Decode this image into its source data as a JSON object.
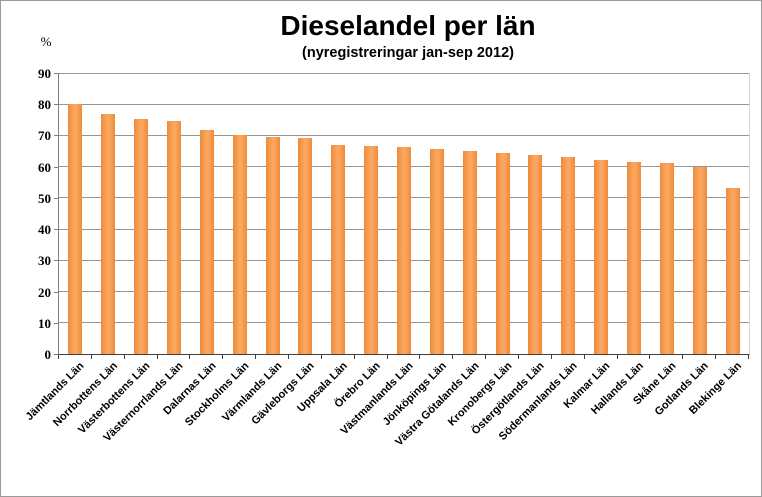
{
  "chart_data": {
    "type": "bar",
    "title": "Dieselandel per län",
    "subtitle": "(nyregistreringar jan-sep 2012)",
    "ylabel": "%",
    "xlabel": "",
    "ylim": [
      0,
      90
    ],
    "yticks": [
      0,
      10,
      20,
      30,
      40,
      50,
      60,
      70,
      80,
      90
    ],
    "grid": true,
    "legend": false,
    "bar_color": "#F79646",
    "gridline_color": "#969696",
    "categories": [
      "Jämtlands Län",
      "Norrbottens Län",
      "Västerbottens Län",
      "Västernorrlands Län",
      "Dalarnas Län",
      "Stockholms Län",
      "Värmlands Län",
      "Gävleborgs Län",
      "Uppsala Län",
      "Örebro Län",
      "Västmanlands Län",
      "Jönköpings Län",
      "Västra Götalands Län",
      "Kronobergs Län",
      "Östergötlands Län",
      "Södermanlands Län",
      "Kalmar Län",
      "Hallands Län",
      "Skåne Län",
      "Gotlands Län",
      "Blekinge Län"
    ],
    "values": [
      80.0,
      76.8,
      75.2,
      74.6,
      71.8,
      70.2,
      69.5,
      69.2,
      67.1,
      66.6,
      66.2,
      65.7,
      64.9,
      64.3,
      63.8,
      63.2,
      62.1,
      61.6,
      61.1,
      59.8,
      53.3
    ]
  }
}
